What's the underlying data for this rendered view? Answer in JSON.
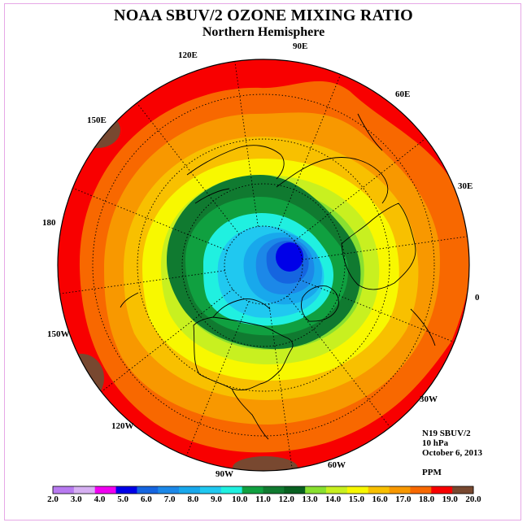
{
  "title": "NOAA SBUV/2 OZONE MIXING RATIO",
  "subtitle": "Northern Hemisphere",
  "meridian_labels": [
    {
      "id": "120e",
      "text": "120E"
    },
    {
      "id": "90e",
      "text": "90E"
    },
    {
      "id": "60e",
      "text": "60E"
    },
    {
      "id": "150e",
      "text": "150E"
    },
    {
      "id": "30e",
      "text": "30E"
    },
    {
      "id": "180",
      "text": "180"
    },
    {
      "id": "0",
      "text": "0"
    },
    {
      "id": "150w",
      "text": "150W"
    },
    {
      "id": "30w",
      "text": "30W"
    },
    {
      "id": "120w",
      "text": "120W"
    },
    {
      "id": "60w",
      "text": "60W"
    },
    {
      "id": "90w",
      "text": "90W"
    }
  ],
  "info": {
    "instrument": "N19 SBUV/2",
    "level": "10 hPa",
    "date": "October 6, 2013",
    "units": "PPM"
  },
  "colorbar": {
    "ticks": [
      "2.0",
      "3.0",
      "4.0",
      "5.0",
      "6.0",
      "7.0",
      "8.0",
      "9.0",
      "10.0",
      "11.0",
      "12.0",
      "13.0",
      "14.0",
      "15.0",
      "16.0",
      "17.0",
      "18.0",
      "19.0",
      "20.0"
    ],
    "colors": [
      "#b87af0",
      "#d6b0f2",
      "#f000f0",
      "#0000e8",
      "#1565e0",
      "#1c88e8",
      "#18a8ec",
      "#20c8f0",
      "#20f0e0",
      "#10a040",
      "#107a30",
      "#086020",
      "#88e030",
      "#c8f020",
      "#f8f800",
      "#f8c000",
      "#f89800",
      "#f86800",
      "#f80000",
      "#784830"
    ]
  },
  "map_colors": {
    "brown": "#784830",
    "red": "#f80000",
    "orange_red": "#f86800",
    "orange": "#f89800",
    "gold": "#f8c000",
    "yellow": "#f8f800",
    "yellow_green": "#c8f020",
    "light_green": "#88e030",
    "dark_green": "#107a30",
    "mid_green": "#10a040",
    "cyan": "#20f0e0",
    "sky": "#20c8f0",
    "light_blue": "#18a8ec",
    "blue": "#1c88e8",
    "deep_blue": "#1565e0",
    "navy": "#0000e8"
  }
}
